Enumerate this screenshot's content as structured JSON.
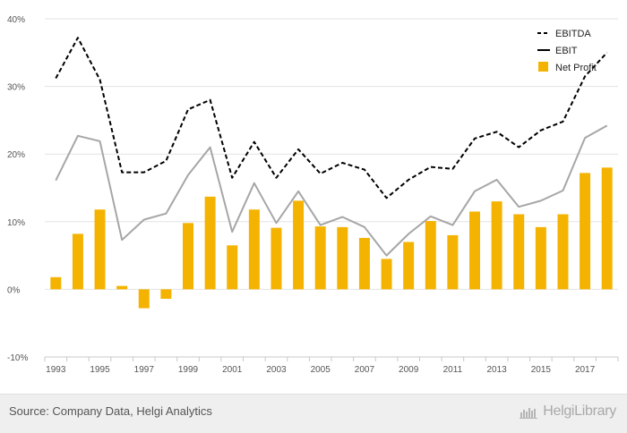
{
  "chart_data": {
    "type": "bar",
    "x": [
      1993,
      1994,
      1995,
      1996,
      1997,
      1998,
      1999,
      2000,
      2001,
      2002,
      2003,
      2004,
      2005,
      2006,
      2007,
      2008,
      2009,
      2010,
      2011,
      2012,
      2013,
      2014,
      2015,
      2016,
      2017,
      2018
    ],
    "x_tick_labels": [
      "1993",
      "1995",
      "1997",
      "1999",
      "2001",
      "2003",
      "2005",
      "2007",
      "2009",
      "2011",
      "2013",
      "2015",
      "2017"
    ],
    "y_tick_labels": [
      "40%",
      "30%",
      "20%",
      "10%",
      "0%",
      "-10%"
    ],
    "y_ticks": [
      40,
      30,
      20,
      10,
      0,
      -10
    ],
    "ylim": [
      -10,
      40
    ],
    "grid": "horizontal",
    "legend_position": "top-right",
    "series": [
      {
        "name": "EBITDA",
        "kind": "line",
        "style": "dashed",
        "color": "#000000",
        "values": [
          31.2,
          37.2,
          31.0,
          17.3,
          17.3,
          19.0,
          26.6,
          28.0,
          16.5,
          21.8,
          16.5,
          20.7,
          17.1,
          18.7,
          17.7,
          13.5,
          16.2,
          18.1,
          17.8,
          22.3,
          23.3,
          21.0,
          23.5,
          24.8,
          31.5,
          35.0
        ]
      },
      {
        "name": "EBIT",
        "kind": "line",
        "style": "solid",
        "color": "#a6a6a6",
        "values": [
          16.1,
          22.7,
          21.9,
          7.3,
          10.3,
          11.2,
          16.9,
          21.0,
          8.5,
          15.7,
          9.8,
          14.5,
          9.5,
          10.7,
          9.2,
          5.0,
          8.2,
          10.8,
          9.5,
          14.5,
          16.2,
          12.2,
          13.1,
          14.6,
          22.4,
          24.2
        ]
      },
      {
        "name": "Net Profit",
        "kind": "bar",
        "color": "#f5b301",
        "values": [
          1.8,
          8.2,
          11.8,
          0.5,
          -2.8,
          -1.4,
          9.8,
          13.7,
          6.5,
          11.8,
          9.1,
          13.1,
          9.3,
          9.2,
          7.6,
          4.5,
          7.0,
          10.1,
          8.0,
          11.5,
          13.0,
          11.1,
          9.2,
          11.1,
          17.2,
          18.0
        ]
      }
    ]
  },
  "legend": {
    "ebitda": "EBITDA",
    "ebit": "EBIT",
    "net_profit": "Net Profit"
  },
  "footer": {
    "source": "Source: Company Data, Helgi Analytics",
    "brand_name": "HelgiLibrary"
  }
}
